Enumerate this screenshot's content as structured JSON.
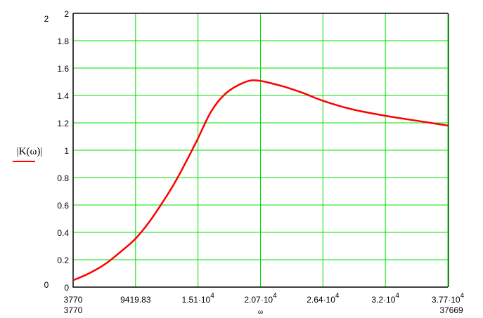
{
  "chart_data": {
    "type": "line",
    "xlabel": "ω",
    "ylabel": "|K(ω)|",
    "xlim": [
      3770,
      37669
    ],
    "ylim": [
      0,
      2
    ],
    "xlim_labels": {
      "min": "3770",
      "max": "37669"
    },
    "ylim_labels": {
      "min": "0",
      "max": "2"
    },
    "x_ticks": [
      {
        "value": 3770,
        "mant": "3770",
        "exp": ""
      },
      {
        "value": 9419.83,
        "mant": "9419.83",
        "exp": ""
      },
      {
        "value": 15069.67,
        "mant": "1.51·10",
        "exp": "4"
      },
      {
        "value": 20719.5,
        "mant": "2.07·10",
        "exp": "4"
      },
      {
        "value": 26369.33,
        "mant": "2.64·10",
        "exp": "4"
      },
      {
        "value": 32019.17,
        "mant": "3.2·10",
        "exp": "4"
      },
      {
        "value": 37669,
        "mant": "3.77·10",
        "exp": "4"
      }
    ],
    "y_ticks": [
      "0",
      "0.2",
      "0.4",
      "0.6",
      "0.8",
      "1",
      "1.2",
      "1.4",
      "1.6",
      "1.8",
      "2"
    ],
    "grid": true,
    "grid_color": "#00e000",
    "series": [
      {
        "color": "#ff0000",
        "x": [
          3770,
          5200,
          6696,
          8100,
          9367,
          10600,
          11784,
          12800,
          13692,
          14964,
          16236,
          17509,
          19098,
          20370,
          22596,
          24504,
          26412,
          28956,
          32136,
          35316,
          37669
        ],
        "y": [
          0.05,
          0.1,
          0.17,
          0.26,
          0.35,
          0.47,
          0.61,
          0.74,
          0.87,
          1.07,
          1.28,
          1.41,
          1.49,
          1.51,
          1.47,
          1.42,
          1.36,
          1.3,
          1.25,
          1.21,
          1.18
        ]
      }
    ]
  }
}
